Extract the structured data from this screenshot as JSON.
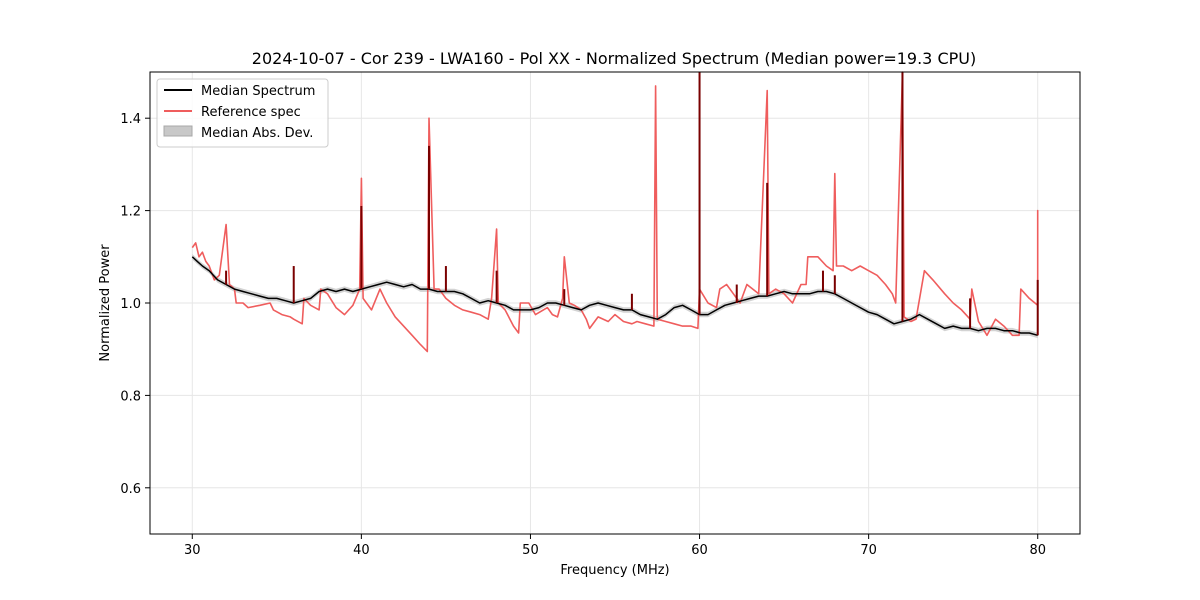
{
  "chart_data": {
    "type": "line",
    "title": "2024-10-07 - Cor 239 - LWA160 - Pol XX - Normalized Spectrum (Median power=19.3 CPU)",
    "xlabel": "Frequency (MHz)",
    "ylabel": "Normalized Power",
    "xlim": [
      27.5,
      82.5
    ],
    "ylim": [
      0.5,
      1.5
    ],
    "xticks": [
      30,
      40,
      50,
      60,
      70,
      80
    ],
    "yticks": [
      0.6,
      0.8,
      1.0,
      1.2,
      1.4
    ],
    "grid": true,
    "legend_position": "top-left",
    "legend": [
      {
        "label": "Median Spectrum",
        "kind": "line",
        "color": "#000000"
      },
      {
        "label": "Reference spec",
        "kind": "line",
        "color": "#ef5d5d"
      },
      {
        "label": "Median Abs. Dev.",
        "kind": "patch",
        "color": "#c8c8c8"
      }
    ],
    "series": [
      {
        "name": "Median Spectrum",
        "color": "#000000",
        "points": [
          [
            30.0,
            1.1
          ],
          [
            30.3,
            1.09
          ],
          [
            30.6,
            1.08
          ],
          [
            31.0,
            1.07
          ],
          [
            31.5,
            1.05
          ],
          [
            32.0,
            1.04
          ],
          [
            32.5,
            1.03
          ],
          [
            33.0,
            1.025
          ],
          [
            33.5,
            1.02
          ],
          [
            34.0,
            1.015
          ],
          [
            34.5,
            1.01
          ],
          [
            35.0,
            1.01
          ],
          [
            35.5,
            1.005
          ],
          [
            36.0,
            1.0
          ],
          [
            36.5,
            1.005
          ],
          [
            37.0,
            1.01
          ],
          [
            37.5,
            1.025
          ],
          [
            38.0,
            1.03
          ],
          [
            38.5,
            1.025
          ],
          [
            39.0,
            1.03
          ],
          [
            39.5,
            1.025
          ],
          [
            40.0,
            1.03
          ],
          [
            40.5,
            1.035
          ],
          [
            41.0,
            1.04
          ],
          [
            41.5,
            1.045
          ],
          [
            42.0,
            1.04
          ],
          [
            42.5,
            1.035
          ],
          [
            43.0,
            1.04
          ],
          [
            43.5,
            1.03
          ],
          [
            44.0,
            1.03
          ],
          [
            44.5,
            1.025
          ],
          [
            45.0,
            1.025
          ],
          [
            45.5,
            1.025
          ],
          [
            46.0,
            1.02
          ],
          [
            46.5,
            1.01
          ],
          [
            47.0,
            1.0
          ],
          [
            47.5,
            1.005
          ],
          [
            48.0,
            1.0
          ],
          [
            48.5,
            0.995
          ],
          [
            49.0,
            0.985
          ],
          [
            49.5,
            0.985
          ],
          [
            50.0,
            0.985
          ],
          [
            50.5,
            0.99
          ],
          [
            51.0,
            1.0
          ],
          [
            51.5,
            1.0
          ],
          [
            52.0,
            0.995
          ],
          [
            52.5,
            0.99
          ],
          [
            53.0,
            0.985
          ],
          [
            53.5,
            0.995
          ],
          [
            54.0,
            1.0
          ],
          [
            54.5,
            0.995
          ],
          [
            55.0,
            0.99
          ],
          [
            55.5,
            0.985
          ],
          [
            56.0,
            0.985
          ],
          [
            56.5,
            0.975
          ],
          [
            57.0,
            0.97
          ],
          [
            57.5,
            0.965
          ],
          [
            58.0,
            0.975
          ],
          [
            58.5,
            0.99
          ],
          [
            59.0,
            0.995
          ],
          [
            59.5,
            0.985
          ],
          [
            60.0,
            0.975
          ],
          [
            60.5,
            0.975
          ],
          [
            61.0,
            0.985
          ],
          [
            61.5,
            0.995
          ],
          [
            62.0,
            1.0
          ],
          [
            62.5,
            1.005
          ],
          [
            63.0,
            1.01
          ],
          [
            63.5,
            1.015
          ],
          [
            64.0,
            1.015
          ],
          [
            64.5,
            1.02
          ],
          [
            65.0,
            1.025
          ],
          [
            65.5,
            1.02
          ],
          [
            66.0,
            1.02
          ],
          [
            66.5,
            1.02
          ],
          [
            67.0,
            1.025
          ],
          [
            67.5,
            1.025
          ],
          [
            68.0,
            1.02
          ],
          [
            68.5,
            1.01
          ],
          [
            69.0,
            1.0
          ],
          [
            69.5,
            0.99
          ],
          [
            70.0,
            0.98
          ],
          [
            70.5,
            0.975
          ],
          [
            71.0,
            0.965
          ],
          [
            71.5,
            0.955
          ],
          [
            72.0,
            0.96
          ],
          [
            72.5,
            0.965
          ],
          [
            73.0,
            0.975
          ],
          [
            73.5,
            0.965
          ],
          [
            74.0,
            0.955
          ],
          [
            74.5,
            0.945
          ],
          [
            75.0,
            0.95
          ],
          [
            75.5,
            0.945
          ],
          [
            76.0,
            0.945
          ],
          [
            76.5,
            0.94
          ],
          [
            77.0,
            0.945
          ],
          [
            77.5,
            0.945
          ],
          [
            78.0,
            0.94
          ],
          [
            78.5,
            0.94
          ],
          [
            79.0,
            0.935
          ],
          [
            79.5,
            0.935
          ],
          [
            80.0,
            0.93
          ]
        ],
        "spikes": [
          [
            32.0,
            1.07
          ],
          [
            36.0,
            1.08
          ],
          [
            40.0,
            1.21
          ],
          [
            44.0,
            1.34
          ],
          [
            45.0,
            1.08
          ],
          [
            48.0,
            1.07
          ],
          [
            52.0,
            1.03
          ],
          [
            56.0,
            1.02
          ],
          [
            60.0,
            1.5
          ],
          [
            62.2,
            1.04
          ],
          [
            64.0,
            1.26
          ],
          [
            67.3,
            1.07
          ],
          [
            68.0,
            1.06
          ],
          [
            72.0,
            1.5
          ],
          [
            76.0,
            1.01
          ],
          [
            80.0,
            1.05
          ]
        ]
      },
      {
        "name": "Reference spec",
        "color": "#ef5d5d",
        "points": [
          [
            30.0,
            1.12
          ],
          [
            30.2,
            1.13
          ],
          [
            30.4,
            1.1
          ],
          [
            30.6,
            1.11
          ],
          [
            30.8,
            1.09
          ],
          [
            31.0,
            1.08
          ],
          [
            31.3,
            1.05
          ],
          [
            31.6,
            1.06
          ],
          [
            32.0,
            1.17
          ],
          [
            32.2,
            1.04
          ],
          [
            32.5,
            1.03
          ],
          [
            32.6,
            1.0
          ],
          [
            33.0,
            1.0
          ],
          [
            33.3,
            0.99
          ],
          [
            34.0,
            0.995
          ],
          [
            34.6,
            1.0
          ],
          [
            34.8,
            0.985
          ],
          [
            35.3,
            0.975
          ],
          [
            35.8,
            0.97
          ],
          [
            36.0,
            0.965
          ],
          [
            36.5,
            0.955
          ],
          [
            36.6,
            1.01
          ],
          [
            37.0,
            0.995
          ],
          [
            37.5,
            0.985
          ],
          [
            37.6,
            1.03
          ],
          [
            38.0,
            1.02
          ],
          [
            38.5,
            0.99
          ],
          [
            39.0,
            0.975
          ],
          [
            39.5,
            0.995
          ],
          [
            39.9,
            1.03
          ],
          [
            40.0,
            1.27
          ],
          [
            40.1,
            1.01
          ],
          [
            40.6,
            0.985
          ],
          [
            41.1,
            1.03
          ],
          [
            41.5,
            1.0
          ],
          [
            42.0,
            0.97
          ],
          [
            42.5,
            0.95
          ],
          [
            43.0,
            0.93
          ],
          [
            43.5,
            0.91
          ],
          [
            43.9,
            0.895
          ],
          [
            44.0,
            1.4
          ],
          [
            44.3,
            1.03
          ],
          [
            44.6,
            1.03
          ],
          [
            45.0,
            1.01
          ],
          [
            45.5,
            0.995
          ],
          [
            46.0,
            0.985
          ],
          [
            46.5,
            0.98
          ],
          [
            47.0,
            0.975
          ],
          [
            47.5,
            0.965
          ],
          [
            47.7,
            1.01
          ],
          [
            48.0,
            1.16
          ],
          [
            48.1,
            1.0
          ],
          [
            48.5,
            0.985
          ],
          [
            49.0,
            0.95
          ],
          [
            49.3,
            0.935
          ],
          [
            49.4,
            1.0
          ],
          [
            49.9,
            1.0
          ],
          [
            50.3,
            0.975
          ],
          [
            51.0,
            0.99
          ],
          [
            51.3,
            0.975
          ],
          [
            51.6,
            0.97
          ],
          [
            51.9,
            1.01
          ],
          [
            52.0,
            1.1
          ],
          [
            52.3,
            1.0
          ],
          [
            52.6,
            0.995
          ],
          [
            53.0,
            0.985
          ],
          [
            53.3,
            0.965
          ],
          [
            53.5,
            0.945
          ],
          [
            54.0,
            0.97
          ],
          [
            54.6,
            0.96
          ],
          [
            55.0,
            0.975
          ],
          [
            55.5,
            0.96
          ],
          [
            56.0,
            0.955
          ],
          [
            56.3,
            0.96
          ],
          [
            56.8,
            0.955
          ],
          [
            57.3,
            0.95
          ],
          [
            57.4,
            1.47
          ],
          [
            57.5,
            0.965
          ],
          [
            58.0,
            0.96
          ],
          [
            58.5,
            0.955
          ],
          [
            59.0,
            0.95
          ],
          [
            59.5,
            0.95
          ],
          [
            59.9,
            0.945
          ],
          [
            60.0,
            1.03
          ],
          [
            60.5,
            1.0
          ],
          [
            61.0,
            0.99
          ],
          [
            61.2,
            1.03
          ],
          [
            61.6,
            1.04
          ],
          [
            62.0,
            1.02
          ],
          [
            62.4,
            1.0
          ],
          [
            62.8,
            1.04
          ],
          [
            63.5,
            1.02
          ],
          [
            64.0,
            1.46
          ],
          [
            64.1,
            1.02
          ],
          [
            64.5,
            1.03
          ],
          [
            65.0,
            1.02
          ],
          [
            65.5,
            1.0
          ],
          [
            66.0,
            1.04
          ],
          [
            66.3,
            1.04
          ],
          [
            66.4,
            1.1
          ],
          [
            67.0,
            1.1
          ],
          [
            67.5,
            1.08
          ],
          [
            67.9,
            1.07
          ],
          [
            68.0,
            1.28
          ],
          [
            68.1,
            1.08
          ],
          [
            68.5,
            1.08
          ],
          [
            69.0,
            1.07
          ],
          [
            69.5,
            1.08
          ],
          [
            70.0,
            1.07
          ],
          [
            70.5,
            1.06
          ],
          [
            71.0,
            1.04
          ],
          [
            71.4,
            1.02
          ],
          [
            71.6,
            1.0
          ],
          [
            72.0,
            1.5
          ],
          [
            72.1,
            0.97
          ],
          [
            72.5,
            0.96
          ],
          [
            72.8,
            0.965
          ],
          [
            73.3,
            1.07
          ],
          [
            73.8,
            1.05
          ],
          [
            74.5,
            1.02
          ],
          [
            75.0,
            1.0
          ],
          [
            75.5,
            0.985
          ],
          [
            76.0,
            0.965
          ],
          [
            76.1,
            1.03
          ],
          [
            76.5,
            0.96
          ],
          [
            77.0,
            0.93
          ],
          [
            77.5,
            0.965
          ],
          [
            78.0,
            0.95
          ],
          [
            78.5,
            0.93
          ],
          [
            78.9,
            0.93
          ],
          [
            79.0,
            1.03
          ],
          [
            79.5,
            1.01
          ],
          [
            80.0,
            0.995
          ],
          [
            80.0,
            1.2
          ],
          [
            80.0,
            1.05
          ]
        ],
        "spikes": []
      }
    ]
  }
}
